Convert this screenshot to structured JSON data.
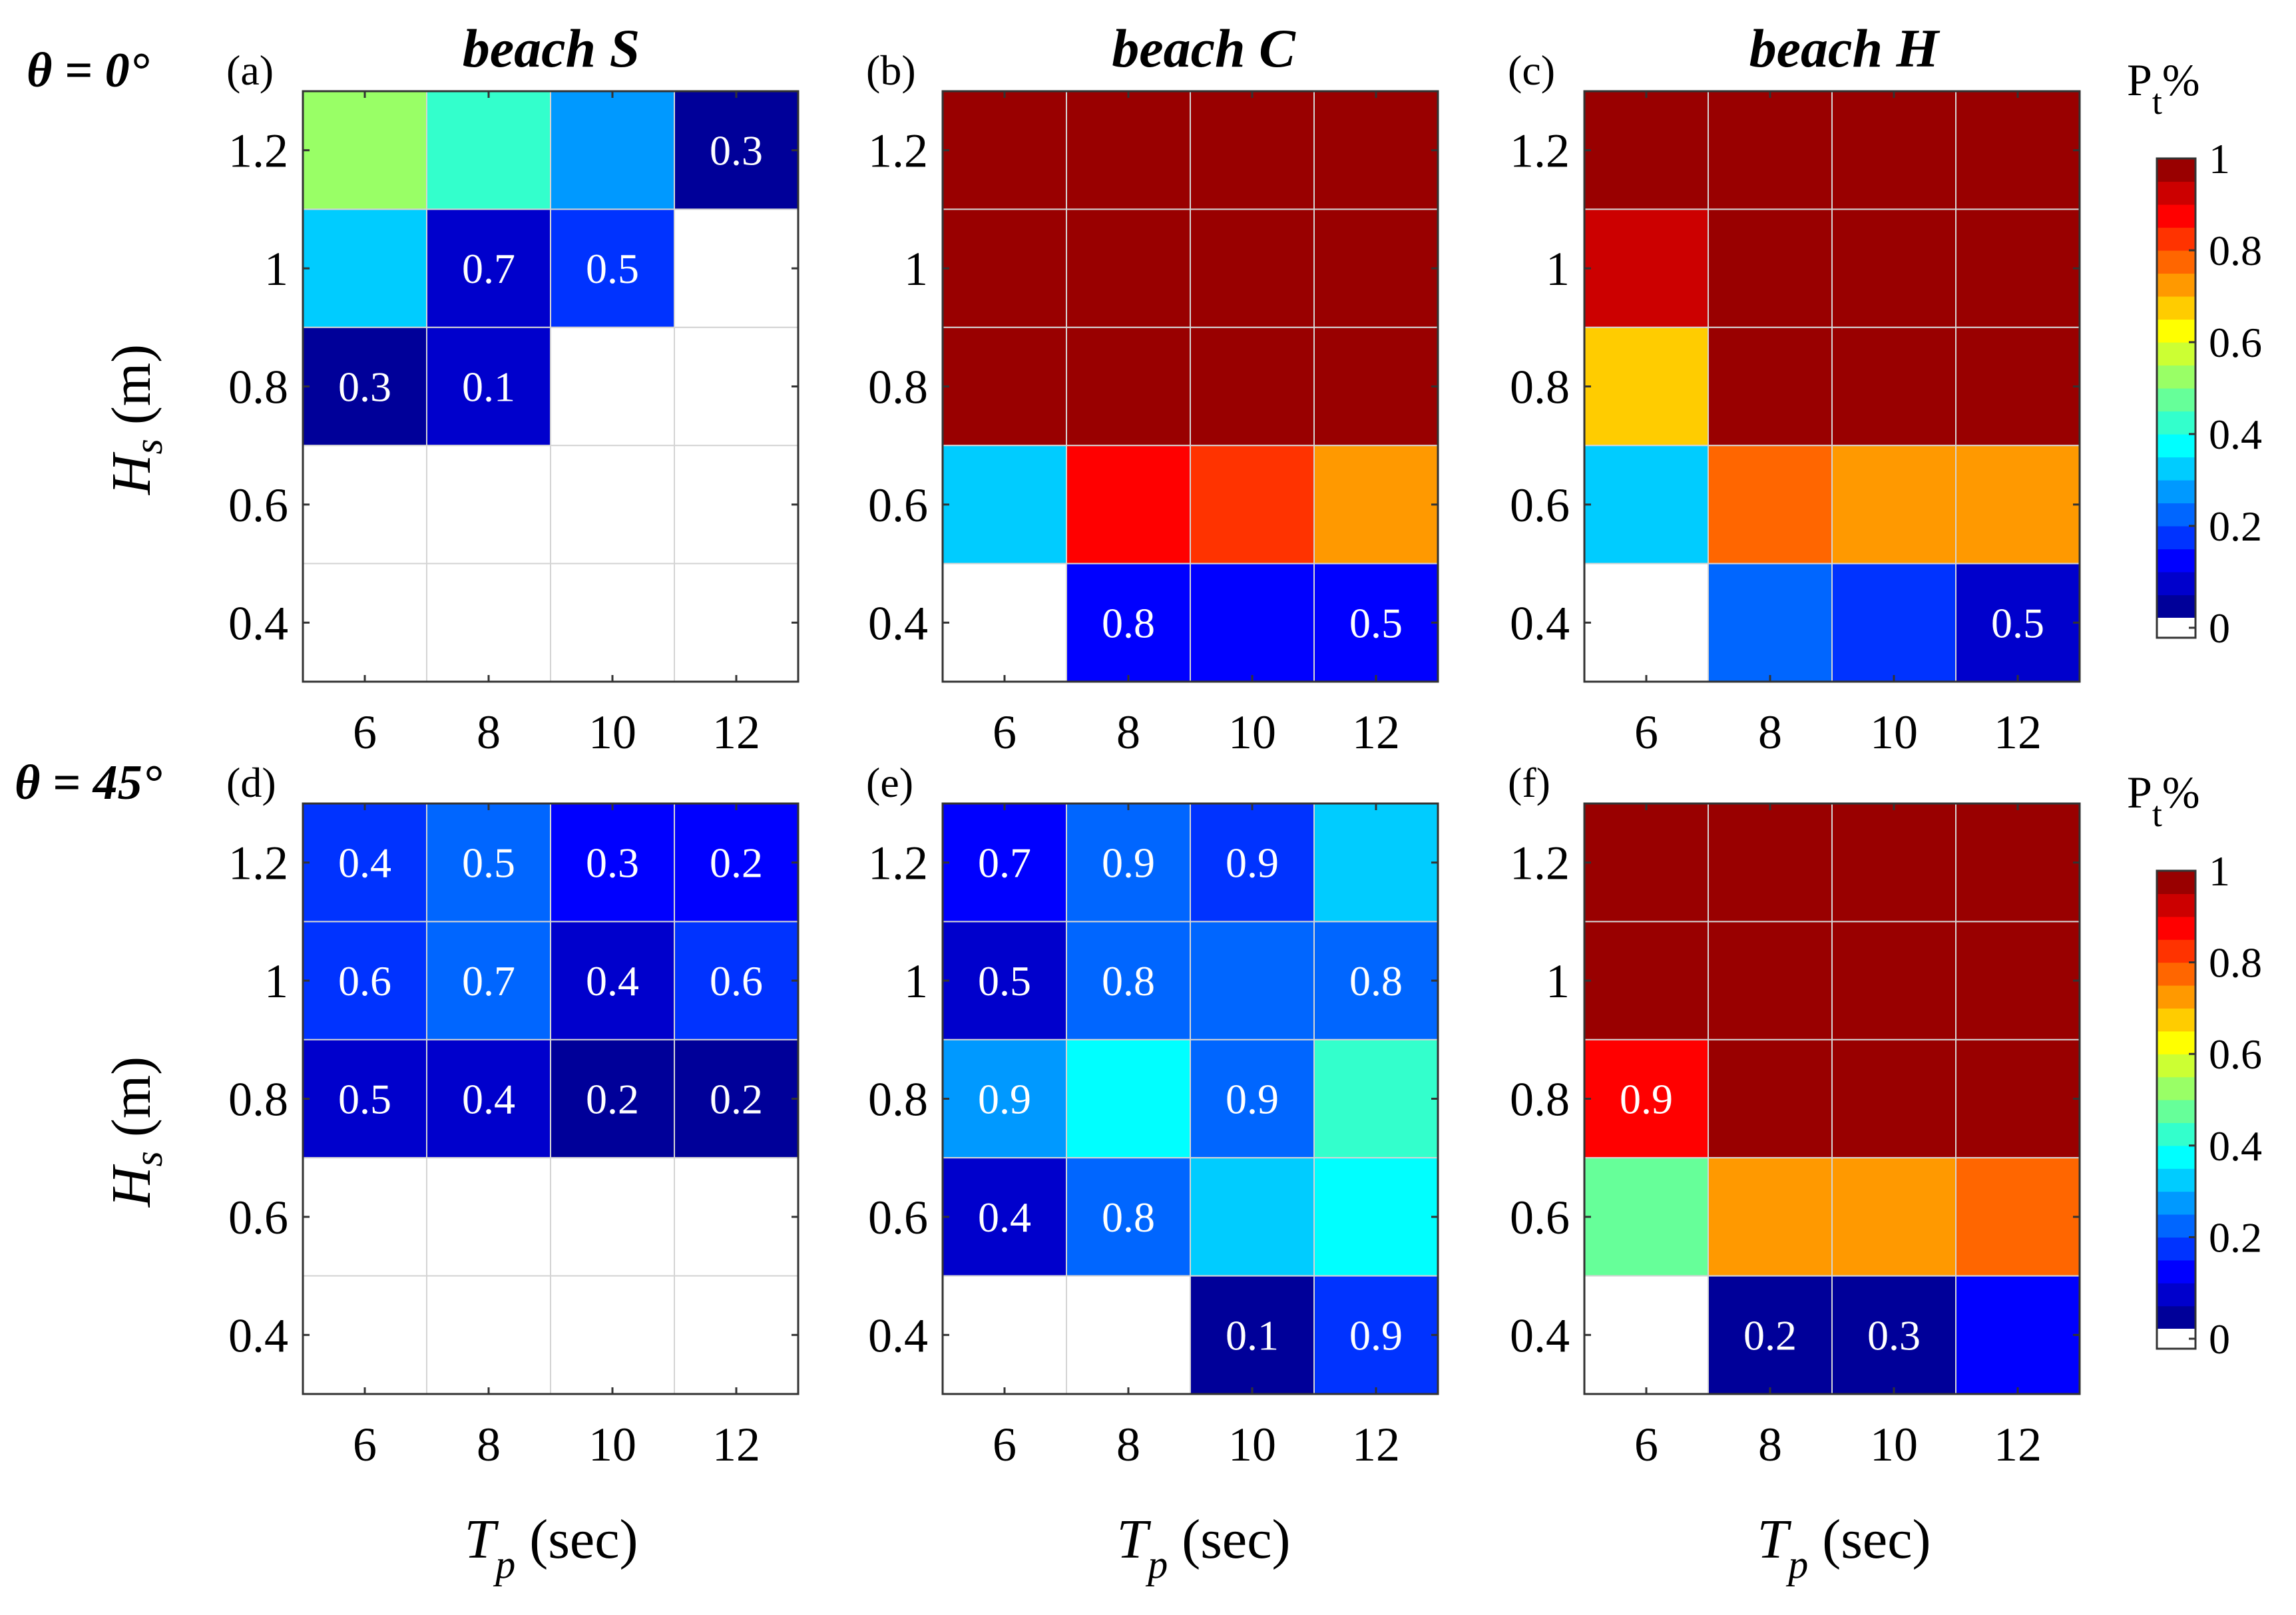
{
  "figure": {
    "theta_labels": [
      "θ = 0°",
      "θ = 45°"
    ],
    "beach_titles": [
      "beach S",
      "beach C",
      "beach H"
    ],
    "colorbar": {
      "title_main": "P",
      "title_sub": "t",
      "title_suffix": "%",
      "ticks": [
        "1",
        "0.8",
        "0.6",
        "0.4",
        "0.2",
        "0"
      ],
      "tick_values": [
        1,
        0.8,
        0.6,
        0.4,
        0.2,
        0
      ],
      "levels": 20,
      "empty_color": "#ffffff"
    },
    "ylabel": {
      "main": "H",
      "sub": "s",
      "suffix": " (m)"
    },
    "xlabel": {
      "main": "T",
      "sub": "p",
      "suffix": " (sec)"
    }
  },
  "chart_data": [
    {
      "type": "heatmap",
      "panel": "(a)",
      "title": "beach S",
      "theta": "θ = 0°",
      "x": [
        6,
        8,
        10,
        12
      ],
      "y": [
        1.2,
        1,
        0.8,
        0.6,
        0.4
      ],
      "xticklabels": [
        "6",
        "8",
        "10",
        "12"
      ],
      "yticklabels": [
        "1.2",
        "1",
        "0.8",
        "0.6",
        "0.4"
      ],
      "values": [
        [
          0.5,
          0.42,
          0.25,
          0.03
        ],
        [
          0.32,
          0.08,
          0.15,
          null
        ],
        [
          0.03,
          0.05,
          null,
          null
        ],
        [
          null,
          null,
          null,
          null
        ],
        [
          null,
          null,
          null,
          null
        ]
      ],
      "labels": [
        [
          "",
          "",
          "",
          "0.3"
        ],
        [
          "",
          "0.7",
          "0.5",
          ""
        ],
        [
          "0.3",
          "0.1",
          "",
          ""
        ],
        [
          "",
          "",
          "",
          ""
        ],
        [
          "",
          "",
          "",
          ""
        ]
      ]
    },
    {
      "type": "heatmap",
      "panel": "(b)",
      "title": "beach C",
      "theta": "θ = 0°",
      "x": [
        6,
        8,
        10,
        12
      ],
      "y": [
        1.2,
        1,
        0.8,
        0.6,
        0.4
      ],
      "xticklabels": [
        "6",
        "8",
        "10",
        "12"
      ],
      "yticklabels": [
        "1.2",
        "1",
        "0.8",
        "0.6",
        "0.4"
      ],
      "values": [
        [
          1.0,
          1.0,
          1.0,
          1.0
        ],
        [
          1.0,
          1.0,
          1.0,
          1.0
        ],
        [
          0.95,
          1.0,
          1.0,
          1.0
        ],
        [
          0.33,
          0.88,
          0.8,
          0.73
        ],
        [
          null,
          0.1,
          0.1,
          0.1
        ]
      ],
      "labels": [
        [
          "",
          "",
          "",
          ""
        ],
        [
          "",
          "",
          "",
          ""
        ],
        [
          "",
          "",
          "",
          ""
        ],
        [
          "",
          "",
          "",
          ""
        ],
        [
          "",
          "0.8",
          "",
          "0.5"
        ]
      ]
    },
    {
      "type": "heatmap",
      "panel": "(c)",
      "title": "beach H",
      "theta": "θ = 0°",
      "x": [
        6,
        8,
        10,
        12
      ],
      "y": [
        1.2,
        1,
        0.8,
        0.6,
        0.4
      ],
      "xticklabels": [
        "6",
        "8",
        "10",
        "12"
      ],
      "yticklabels": [
        "1.2",
        "1",
        "0.8",
        "0.6",
        "0.4"
      ],
      "values": [
        [
          1.0,
          1.0,
          1.0,
          1.0
        ],
        [
          0.93,
          1.0,
          1.0,
          1.0
        ],
        [
          0.68,
          0.95,
          1.0,
          1.0
        ],
        [
          0.33,
          0.78,
          0.73,
          0.73
        ],
        [
          null,
          0.23,
          0.18,
          0.05
        ]
      ],
      "labels": [
        [
          "",
          "",
          "",
          ""
        ],
        [
          "",
          "",
          "",
          ""
        ],
        [
          "",
          "",
          "",
          ""
        ],
        [
          "",
          "",
          "",
          ""
        ],
        [
          "",
          "",
          "",
          "0.5"
        ]
      ]
    },
    {
      "type": "heatmap",
      "panel": "(d)",
      "title": "",
      "theta": "θ = 45°",
      "x": [
        6,
        8,
        10,
        12
      ],
      "y": [
        1.2,
        1,
        0.8,
        0.6,
        0.4
      ],
      "xticklabels": [
        "6",
        "8",
        "10",
        "12"
      ],
      "yticklabels": [
        "1.2",
        "1",
        "0.8",
        "0.6",
        "0.4"
      ],
      "values": [
        [
          0.15,
          0.2,
          0.13,
          0.12
        ],
        [
          0.15,
          0.2,
          0.08,
          0.15
        ],
        [
          0.07,
          0.05,
          0.03,
          0.04
        ],
        [
          null,
          null,
          null,
          null
        ],
        [
          null,
          null,
          null,
          null
        ]
      ],
      "labels": [
        [
          "0.4",
          "0.5",
          "0.3",
          "0.2"
        ],
        [
          "0.6",
          "0.7",
          "0.4",
          "0.6"
        ],
        [
          "0.5",
          "0.4",
          "0.2",
          "0.2"
        ],
        [
          "",
          "",
          "",
          ""
        ],
        [
          "",
          "",
          "",
          ""
        ]
      ]
    },
    {
      "type": "heatmap",
      "panel": "(e)",
      "title": "",
      "theta": "θ = 45°",
      "x": [
        6,
        8,
        10,
        12
      ],
      "y": [
        1.2,
        1,
        0.8,
        0.6,
        0.4
      ],
      "xticklabels": [
        "6",
        "8",
        "10",
        "12"
      ],
      "yticklabels": [
        "1.2",
        "1",
        "0.8",
        "0.6",
        "0.4"
      ],
      "values": [
        [
          0.1,
          0.2,
          0.18,
          0.3
        ],
        [
          0.05,
          0.2,
          0.2,
          0.2
        ],
        [
          0.28,
          0.35,
          0.2,
          0.4
        ],
        [
          0.08,
          0.2,
          0.3,
          0.35
        ],
        [
          null,
          null,
          0.03,
          0.15
        ]
      ],
      "labels": [
        [
          "0.7",
          "0.9",
          "0.9",
          ""
        ],
        [
          "0.5",
          "0.8",
          "",
          "0.8"
        ],
        [
          "0.9",
          "",
          "0.9",
          ""
        ],
        [
          "0.4",
          "0.8",
          "",
          ""
        ],
        [
          "",
          "",
          "0.1",
          "0.9"
        ]
      ]
    },
    {
      "type": "heatmap",
      "panel": "(f)",
      "title": "",
      "theta": "θ = 45°",
      "x": [
        6,
        8,
        10,
        12
      ],
      "y": [
        1.2,
        1,
        0.8,
        0.6,
        0.4
      ],
      "xticklabels": [
        "6",
        "8",
        "10",
        "12"
      ],
      "yticklabels": [
        "1.2",
        "1",
        "0.8",
        "0.6",
        "0.4"
      ],
      "values": [
        [
          1.0,
          1.0,
          1.0,
          1.0
        ],
        [
          1.0,
          1.0,
          1.0,
          1.0
        ],
        [
          0.88,
          1.0,
          1.0,
          1.0
        ],
        [
          0.48,
          0.73,
          0.73,
          0.78
        ],
        [
          null,
          0.03,
          0.03,
          0.13
        ]
      ],
      "labels": [
        [
          "",
          "",
          "",
          ""
        ],
        [
          "",
          "",
          "",
          ""
        ],
        [
          "0.9",
          "",
          "",
          ""
        ],
        [
          "",
          "",
          "",
          ""
        ],
        [
          "",
          "0.2",
          "0.3",
          ""
        ]
      ]
    }
  ]
}
